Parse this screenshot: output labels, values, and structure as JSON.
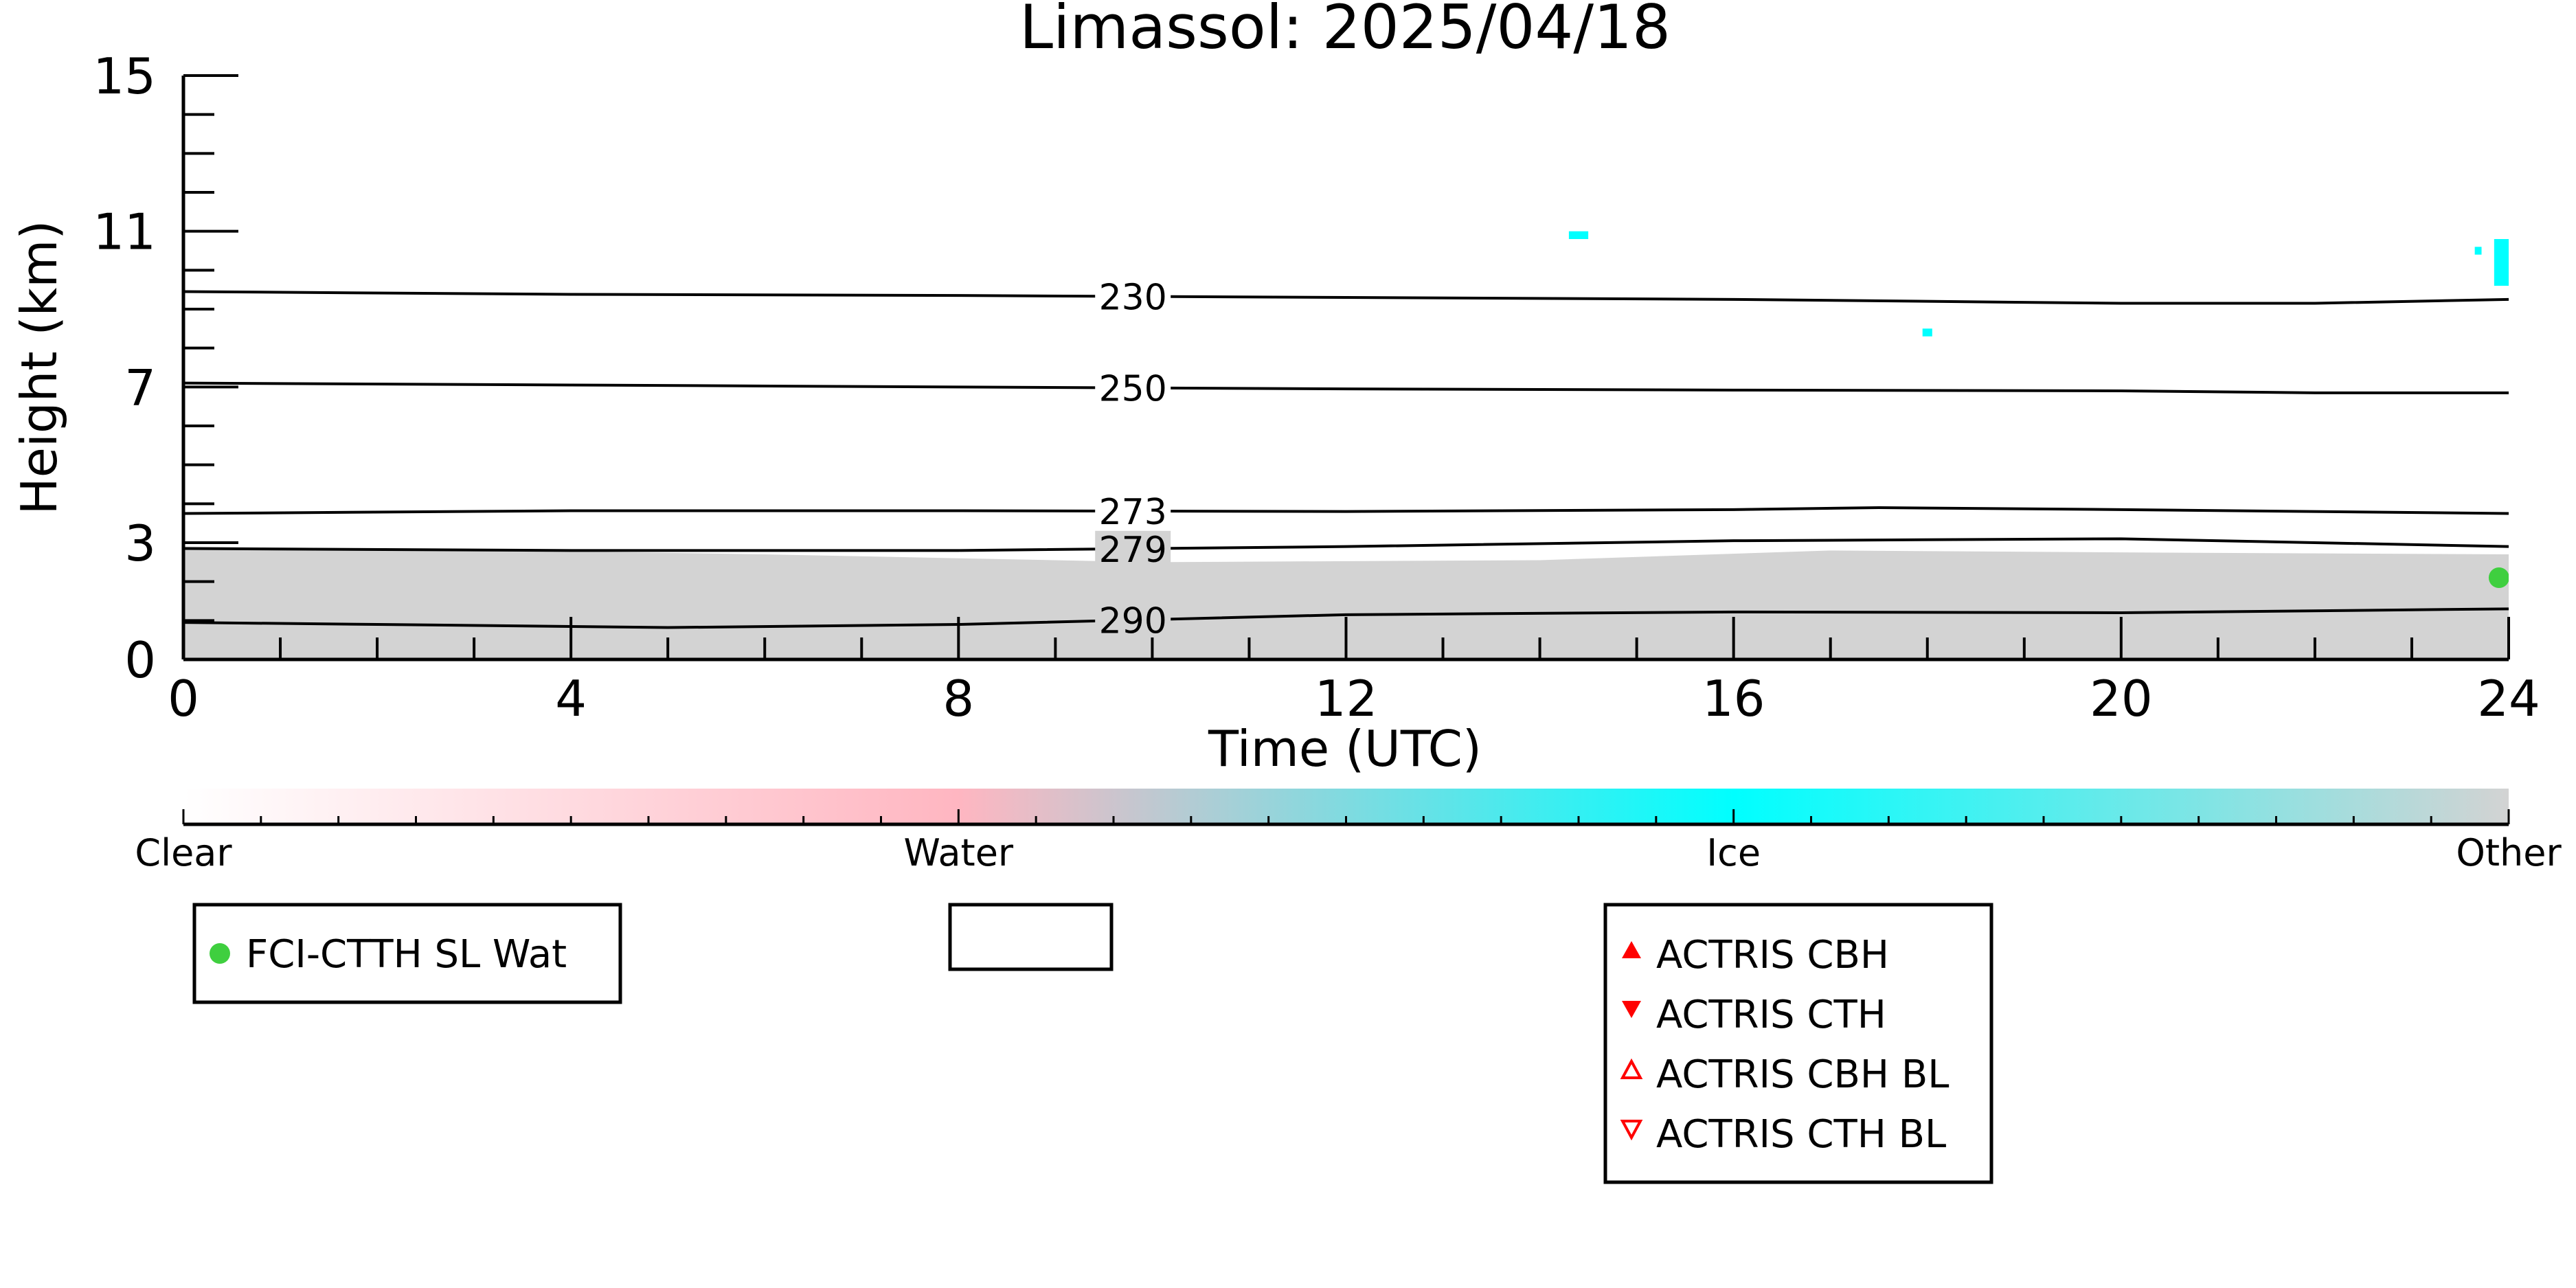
{
  "chart_data": {
    "type": "line",
    "title": "Limassol: 2025/04/18",
    "xlabel": "Time (UTC)",
    "ylabel": "Height (km)",
    "xlim": [
      0,
      24
    ],
    "ylim": [
      0,
      15
    ],
    "x_ticks": [
      0,
      4,
      8,
      12,
      16,
      20,
      24
    ],
    "y_ticks": [
      0,
      3,
      7,
      11,
      15
    ],
    "grid": false,
    "isotherms": [
      {
        "name": "230",
        "label_x": 9.8,
        "x": [
          0,
          4,
          8,
          12,
          16,
          20,
          22,
          24
        ],
        "y": [
          9.45,
          9.38,
          9.35,
          9.3,
          9.25,
          9.15,
          9.15,
          9.25
        ]
      },
      {
        "name": "250",
        "label_x": 9.8,
        "x": [
          0,
          4,
          8,
          12,
          16,
          20,
          22,
          24
        ],
        "y": [
          7.1,
          7.05,
          7.0,
          6.95,
          6.92,
          6.9,
          6.85,
          6.85
        ]
      },
      {
        "name": "273",
        "label_x": 9.8,
        "x": [
          0,
          4,
          8,
          12,
          16,
          17.5,
          20,
          24
        ],
        "y": [
          3.75,
          3.82,
          3.82,
          3.8,
          3.85,
          3.9,
          3.85,
          3.75
        ]
      },
      {
        "name": "279",
        "label_x": 9.8,
        "x": [
          0,
          4,
          8,
          12,
          16,
          20,
          24
        ],
        "y": [
          2.85,
          2.8,
          2.8,
          2.9,
          3.05,
          3.1,
          2.9
        ]
      },
      {
        "name": "290",
        "label_x": 9.8,
        "x": [
          0,
          2,
          5,
          8,
          12,
          16,
          20,
          24
        ],
        "y": [
          0.95,
          0.9,
          0.82,
          0.9,
          1.15,
          1.22,
          1.2,
          1.3
        ]
      }
    ],
    "cloud_phase_regions": [
      {
        "class": "Other",
        "color": "#d3d3d3",
        "x": [
          0,
          2,
          6,
          10,
          14,
          17,
          20,
          24
        ],
        "y_bottom": 0,
        "y_top": [
          2.9,
          2.85,
          2.7,
          2.5,
          2.55,
          2.8,
          2.75,
          2.7
        ]
      },
      {
        "class": "Ice",
        "color": "#00ffff",
        "x_range": [
          14.3,
          14.5
        ],
        "y_range": [
          10.8,
          11.0
        ]
      },
      {
        "class": "Ice",
        "color": "#00ffff",
        "x_range": [
          17.95,
          18.05
        ],
        "y_range": [
          8.3,
          8.5
        ]
      },
      {
        "class": "Ice",
        "color": "#00ffff",
        "x_range": [
          23.65,
          23.72
        ],
        "y_range": [
          10.4,
          10.6
        ]
      },
      {
        "class": "Ice",
        "color": "#00ffff",
        "x_range": [
          23.85,
          24.0
        ],
        "y_range": [
          9.6,
          10.8
        ]
      }
    ],
    "markers": [
      {
        "series": "FCI-CTTH SL Wat",
        "x": 23.9,
        "y": 2.1,
        "color": "#3fcf3f"
      }
    ],
    "colorbar": {
      "labels": [
        "Clear",
        "Water",
        "Ice",
        "Other"
      ],
      "colors": [
        "#ffffff",
        "#ffb6c1",
        "#00ffff",
        "#d3d3d3"
      ]
    },
    "legends": [
      {
        "entries": [
          {
            "label": "FCI-CTTH SL Wat",
            "marker": "circle",
            "color": "#3fcf3f"
          }
        ]
      },
      {
        "entries": []
      },
      {
        "entries": [
          {
            "label": "ACTRIS CBH",
            "marker": "triangle-up",
            "color": "#ff0000"
          },
          {
            "label": "ACTRIS CTH",
            "marker": "triangle-down",
            "color": "#ff0000"
          },
          {
            "label": "ACTRIS CBH BL",
            "marker": "triangle-up-open",
            "color": "#ff0000"
          },
          {
            "label": "ACTRIS CTH BL",
            "marker": "triangle-down-open",
            "color": "#ff0000"
          }
        ]
      }
    ]
  }
}
